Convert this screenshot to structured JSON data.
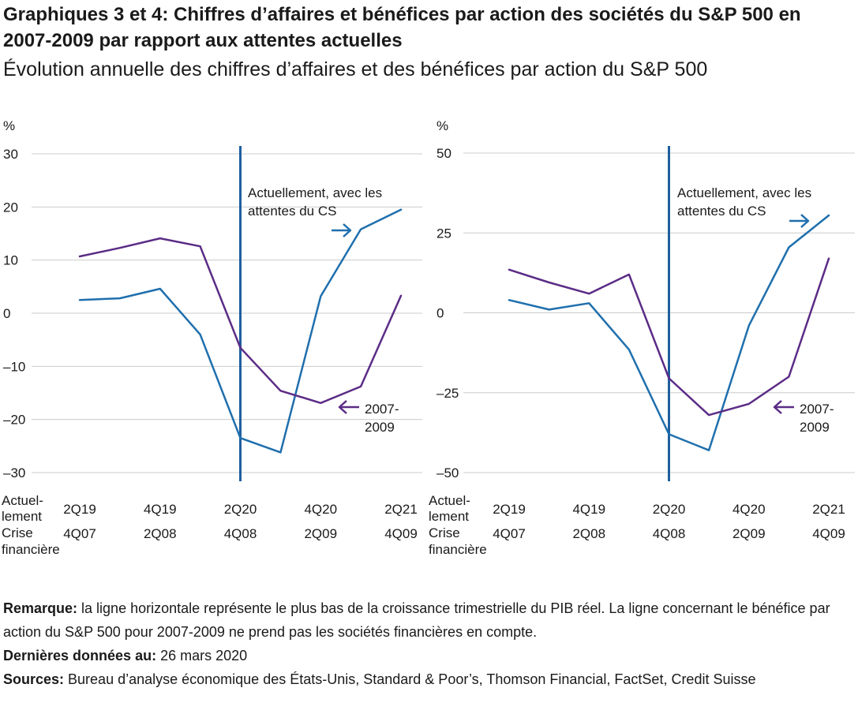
{
  "header": {
    "title": "Graphiques 3 et 4: Chiffres d’affaires et bénéfices par action des sociétés du S&P 500 en 2007-2009 par rapport aux attentes actuelles",
    "subtitle": "Évolution annuelle des chiffres d’affaires et des bénéfices par action du S&P 500"
  },
  "colors": {
    "current": "#1f6fad",
    "crisis": "#5b2c86",
    "grid": "#cccccc",
    "vline": "#1f5f9e"
  },
  "chart_data": [
    {
      "type": "line",
      "ylabel": "%",
      "ylim": [
        -30,
        30
      ],
      "yticks": [
        30,
        20,
        10,
        0,
        -10,
        -20,
        -30
      ],
      "ytick_labels": [
        "30",
        "20",
        "10",
        "0",
        "–10",
        "–20",
        "–30"
      ],
      "x_positions": [
        0,
        1,
        2,
        3,
        4,
        5,
        6,
        7,
        8
      ],
      "vline_at": 4,
      "row_labels": {
        "current": "Actuel-\nlement",
        "crisis": "Crise\nfinancière"
      },
      "x_ticks_current": [
        {
          "x": 0,
          "label": "2Q19"
        },
        {
          "x": 2,
          "label": "4Q19"
        },
        {
          "x": 4,
          "label": "2Q20"
        },
        {
          "x": 6,
          "label": "4Q20"
        },
        {
          "x": 8,
          "label": "2Q21"
        }
      ],
      "x_ticks_crisis": [
        {
          "x": 0,
          "label": "4Q07"
        },
        {
          "x": 2,
          "label": "2Q08"
        },
        {
          "x": 4,
          "label": "4Q08"
        },
        {
          "x": 6,
          "label": "2Q09"
        },
        {
          "x": 8,
          "label": "4Q09"
        }
      ],
      "series": [
        {
          "key": "current",
          "values": [
            2.5,
            2.8,
            4.6,
            -4.0,
            -23.5,
            -26.2,
            3.2,
            15.8,
            19.5
          ]
        },
        {
          "key": "crisis",
          "values": [
            10.7,
            12.3,
            14.1,
            12.6,
            -6.5,
            -14.6,
            -16.9,
            -13.8,
            3.3
          ]
        }
      ],
      "annotations": {
        "current": "Actuellement, avec les\nattentes du CS",
        "crisis": "2007-\n2009"
      }
    },
    {
      "type": "line",
      "ylabel": "%",
      "ylim": [
        -50,
        50
      ],
      "yticks": [
        50,
        25,
        0,
        -25,
        -50
      ],
      "ytick_labels": [
        "50",
        "25",
        "0",
        "–25",
        "–50"
      ],
      "x_positions": [
        0,
        1,
        2,
        3,
        4,
        5,
        6,
        7,
        8
      ],
      "vline_at": 4,
      "row_labels": {
        "current": "Actuel-\nlement",
        "crisis": "Crise\nfinancière"
      },
      "x_ticks_current": [
        {
          "x": 0,
          "label": "2Q19"
        },
        {
          "x": 2,
          "label": "4Q19"
        },
        {
          "x": 4,
          "label": "2Q20"
        },
        {
          "x": 6,
          "label": "4Q20"
        },
        {
          "x": 8,
          "label": "2Q21"
        }
      ],
      "x_ticks_crisis": [
        {
          "x": 0,
          "label": "4Q07"
        },
        {
          "x": 2,
          "label": "2Q08"
        },
        {
          "x": 4,
          "label": "4Q08"
        },
        {
          "x": 6,
          "label": "2Q09"
        },
        {
          "x": 8,
          "label": "4Q09"
        }
      ],
      "series": [
        {
          "key": "current",
          "values": [
            4.0,
            1.0,
            3.0,
            -11.5,
            -38.0,
            -43.0,
            -4.0,
            20.5,
            30.5
          ]
        },
        {
          "key": "crisis",
          "values": [
            13.5,
            9.5,
            6.0,
            12.0,
            -20.5,
            -32.0,
            -28.5,
            -20.0,
            17.0
          ]
        }
      ],
      "annotations": {
        "current": "Actuellement, avec les\nattentes du CS",
        "crisis": "2007-\n2009"
      }
    }
  ],
  "notes": {
    "remark_label": "Remarque:",
    "remark_text": " la ligne horizontale représente le plus bas de la croissance trimestrielle du PIB réel. La ligne concernant le bénéfice par action du S&P 500 pour 2007-2009 ne prend pas les sociétés financières en compte.",
    "date_label": "Dernières données au:",
    "date_text": " 26 mars 2020",
    "sources_label": "Sources:",
    "sources_text": " Bureau d’analyse économique des États-Unis, Standard & Poor’s, Thomson Financial, FactSet, Credit Suisse"
  }
}
